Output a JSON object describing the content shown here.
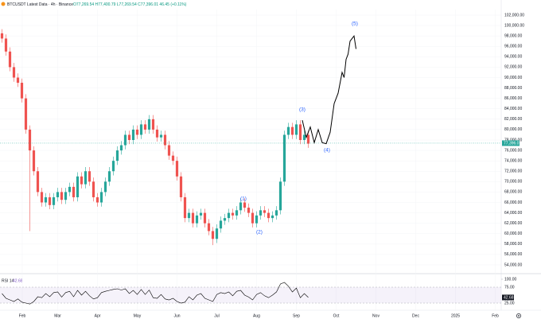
{
  "chart_data": {
    "type": "candlestick",
    "title": "BTCUSDT Latest Data · 4h · Binance",
    "subtitle": "O77,269.54 H77,400.79 L77,269.54 C77,396.01 46.45 (+0.11%)",
    "up_color": "#26a69a",
    "down_color": "#ef5350",
    "open": [
      98500,
      97500,
      95000,
      92000,
      90000,
      89000,
      86000,
      80000,
      76000,
      72000,
      68000,
      66000,
      67000,
      65500,
      67000,
      68000,
      66500,
      68000,
      69000,
      67000,
      71000,
      69500,
      72000,
      70000,
      67000,
      66000,
      68000,
      70000,
      72000,
      74000,
      76000,
      77000,
      79000,
      78000,
      80000,
      79000,
      81000,
      80000,
      82000,
      80000,
      78500,
      79000,
      77000,
      75000,
      74000,
      71000,
      67000,
      63000,
      64000,
      62000,
      63500,
      64000,
      62000,
      60500,
      59000,
      61000,
      62500,
      63000,
      64000,
      63500,
      64500,
      66000,
      65000,
      64000,
      62000,
      63500,
      64500,
      64000,
      63000,
      63500,
      64500,
      70000,
      79000,
      80500,
      79000,
      81000,
      78000,
      79000
    ],
    "high": [
      99300,
      98300,
      95800,
      92800,
      90800,
      89800,
      86800,
      80800,
      76800,
      72800,
      68800,
      67800,
      67800,
      67800,
      68800,
      68800,
      68800,
      69800,
      69800,
      71800,
      71800,
      72800,
      72800,
      70800,
      67800,
      68800,
      70800,
      72800,
      74800,
      76800,
      77800,
      79800,
      79800,
      80800,
      80800,
      81800,
      81800,
      82800,
      82800,
      80800,
      79800,
      79800,
      77800,
      75800,
      74800,
      71800,
      67800,
      64800,
      64800,
      64300,
      64800,
      64800,
      62800,
      61300,
      61800,
      63300,
      63800,
      64800,
      64800,
      65300,
      66800,
      66800,
      65800,
      64800,
      64300,
      65300,
      65300,
      64800,
      64300,
      65300,
      70800,
      79800,
      81300,
      81300,
      81800,
      81800,
      79800,
      79800
    ],
    "low": [
      96700,
      94200,
      91200,
      89200,
      88200,
      85200,
      79200,
      60500,
      71200,
      67200,
      65200,
      65200,
      64700,
      64700,
      66200,
      65700,
      65700,
      67200,
      66200,
      66200,
      68700,
      68700,
      69200,
      66200,
      65200,
      65200,
      67200,
      69200,
      71200,
      73200,
      75200,
      76200,
      77200,
      77200,
      78200,
      78200,
      79200,
      79200,
      79200,
      77700,
      77700,
      76200,
      74200,
      73200,
      70200,
      66200,
      62200,
      62200,
      61200,
      61200,
      62700,
      61200,
      59700,
      57800,
      58200,
      60200,
      61700,
      62200,
      62700,
      62700,
      63700,
      64200,
      63200,
      61200,
      61200,
      62700,
      63200,
      62200,
      62200,
      62700,
      63700,
      69200,
      78200,
      78200,
      78200,
      77200,
      77200,
      76500
    ],
    "close": [
      97500,
      95000,
      92000,
      90000,
      89000,
      86000,
      80000,
      76000,
      72000,
      68000,
      66000,
      67000,
      65500,
      67000,
      68000,
      66500,
      68000,
      69000,
      67000,
      71000,
      69500,
      72000,
      70000,
      67000,
      66000,
      68000,
      70000,
      72000,
      74000,
      76000,
      77000,
      79000,
      78000,
      80000,
      79000,
      81000,
      80000,
      82000,
      80000,
      78500,
      79000,
      77000,
      75000,
      74000,
      71000,
      67000,
      63000,
      64000,
      62000,
      63500,
      64000,
      62000,
      60500,
      59000,
      61000,
      62500,
      63000,
      64000,
      63500,
      64500,
      66000,
      65000,
      64000,
      62000,
      63500,
      64500,
      64000,
      63000,
      63500,
      64500,
      70000,
      79000,
      80500,
      79000,
      81000,
      78000,
      79000,
      77300
    ],
    "last_price": {
      "value": 77396.01,
      "label": "77,396.01"
    },
    "projection": {
      "color": "#000000",
      "x": [
        75.5,
        76.5,
        77.5,
        78.5,
        79.5,
        80.5,
        81.5,
        82.5,
        83.5,
        84.5,
        85.5,
        86,
        86.5,
        87,
        87.5,
        88,
        88.5,
        89
      ],
      "values": [
        81800,
        78500,
        80500,
        77500,
        80000,
        77500,
        77300,
        79500,
        85000,
        87000,
        91000,
        90000,
        93500,
        94500,
        97000,
        97500,
        98000,
        95500
      ]
    },
    "wave_labels": [
      "(1)",
      "(2)",
      "(3)",
      "(4)",
      "(5)"
    ],
    "wave_color": "#2962ff",
    "xlim": [
      -0.5,
      125.5
    ],
    "xticks": [
      {
        "value": 5.1,
        "label": "Feb"
      },
      {
        "value": 14,
        "label": "Mar"
      },
      {
        "value": 24,
        "label": "Apr"
      },
      {
        "value": 34,
        "label": "May"
      },
      {
        "value": 44,
        "label": "Jun"
      },
      {
        "value": 54,
        "label": "Jul"
      },
      {
        "value": 64,
        "label": "Aug"
      },
      {
        "value": 74,
        "label": "Sep"
      },
      {
        "value": 84,
        "label": "Oct"
      },
      {
        "value": 94,
        "label": "Nov"
      },
      {
        "value": 104,
        "label": "Dec"
      },
      {
        "value": 114,
        "label": "2025"
      },
      {
        "value": 124,
        "label": "Feb"
      }
    ],
    "ylim": [
      54000,
      102000
    ],
    "yticks": [
      {
        "value": 54000,
        "label": "54,000.00"
      },
      {
        "value": 56000,
        "label": "56,000.00"
      },
      {
        "value": 58000,
        "label": "58,000.00"
      },
      {
        "value": 60000,
        "label": "60,000.00"
      },
      {
        "value": 62000,
        "label": "62,000.00"
      },
      {
        "value": 64000,
        "label": "64,000.00"
      },
      {
        "value": 66000,
        "label": "66,000.00"
      },
      {
        "value": 68000,
        "label": "68,000.00"
      },
      {
        "value": 70000,
        "label": "70,000.00"
      },
      {
        "value": 72000,
        "label": "72,000.00"
      },
      {
        "value": 74000,
        "label": "74,000.00"
      },
      {
        "value": 76000,
        "label": "76,000.00"
      },
      {
        "value": 78000,
        "label": "78,000.00"
      },
      {
        "value": 80000,
        "label": "80,000.00"
      },
      {
        "value": 82000,
        "label": "82,000.00"
      },
      {
        "value": 84000,
        "label": "84,000.00"
      },
      {
        "value": 86000,
        "label": "86,000.00"
      },
      {
        "value": 88000,
        "label": "88,000.00"
      },
      {
        "value": 90000,
        "label": "90,000.00"
      },
      {
        "value": 92000,
        "label": "92,000.00"
      },
      {
        "value": 94000,
        "label": "94,000.00"
      },
      {
        "value": 96000,
        "label": "96,000.00"
      },
      {
        "value": 98000,
        "label": "98,000.00"
      },
      {
        "value": 100000,
        "label": "100,000.00"
      },
      {
        "value": 102000,
        "label": "102,000.00"
      }
    ],
    "rsi": {
      "name": "RSI 14",
      "color": "#000000",
      "value_label": "42.68",
      "values": [
        55,
        40,
        35,
        30,
        38,
        28,
        25,
        22,
        30,
        45,
        42,
        55,
        45,
        58,
        60,
        44,
        58,
        62,
        45,
        65,
        50,
        62,
        48,
        38,
        42,
        58,
        62,
        65,
        68,
        70,
        66,
        70,
        55,
        65,
        52,
        68,
        52,
        66,
        42,
        40,
        52,
        38,
        35,
        40,
        30,
        25,
        28,
        45,
        35,
        50,
        55,
        40,
        35,
        30,
        52,
        58,
        55,
        60,
        48,
        62,
        65,
        50,
        44,
        35,
        52,
        58,
        48,
        42,
        50,
        60,
        85,
        90,
        78,
        60,
        72,
        42,
        55,
        42.68
      ],
      "ylim": [
        0,
        100
      ],
      "yticks": [
        {
          "value": 100,
          "label": "100.00"
        },
        {
          "value": 75,
          "label": "75.00"
        },
        {
          "value": 25,
          "label": "25.00"
        }
      ]
    }
  }
}
